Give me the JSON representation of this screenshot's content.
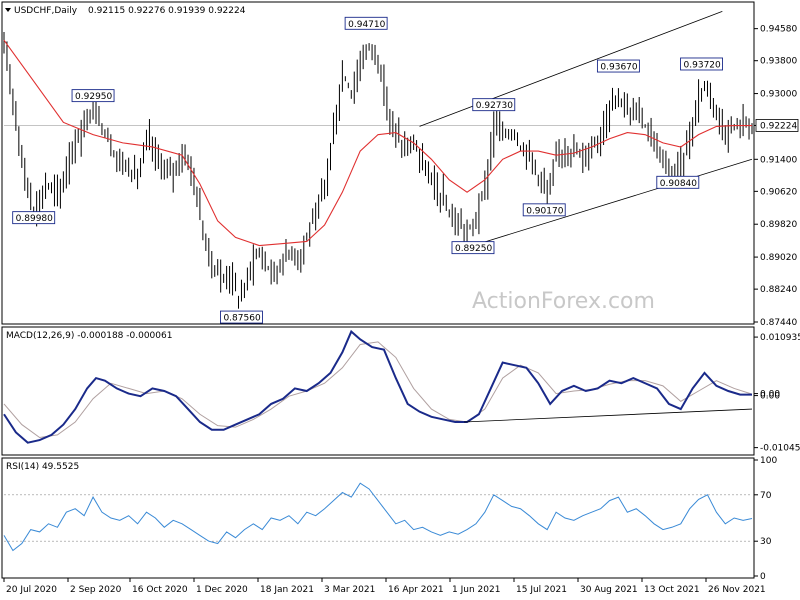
{
  "header": {
    "symbol": "USDCHF,Daily",
    "ohlc": "0.92115 0.92276 0.91939 0.92224"
  },
  "watermark": "ActionForex.com",
  "colors": {
    "candle": "#000000",
    "ma": "#e03030",
    "macd": "#1a2a8a",
    "signal": "#b0a0a0",
    "rsi": "#3a8ad6",
    "trend": "#000000",
    "label_border": "#1a2a8a"
  },
  "chart_data": [
    {
      "type": "candlestick",
      "title": "USDCHF,Daily",
      "yticks": [
        "0.94580",
        "0.93800",
        "0.93000",
        "0.92224",
        "0.91400",
        "0.90620",
        "0.89820",
        "0.89020",
        "0.88240",
        "0.87440"
      ],
      "ylim": [
        0.8744,
        0.9518
      ],
      "current_price": "0.92224",
      "x_tick_labels": [
        "20 Jul 2020",
        "2 Sep 2020",
        "16 Oct 2020",
        "1 Dec 2020",
        "18 Jan 2021",
        "3 Mar 2021",
        "16 Apr 2021",
        "1 Jun 2021",
        "15 Jul 2021",
        "30 Aug 2021",
        "13 Oct 2021",
        "26 Nov 2021"
      ],
      "annotations": [
        {
          "text": "0.92950",
          "price": 0.9295,
          "bar": 30
        },
        {
          "text": "0.89980",
          "price": 0.8998,
          "bar": 10
        },
        {
          "text": "0.87560",
          "price": 0.8756,
          "bar": 80
        },
        {
          "text": "0.94710",
          "price": 0.9471,
          "bar": 122
        },
        {
          "text": "0.89250",
          "price": 0.8925,
          "bar": 158
        },
        {
          "text": "0.92730",
          "price": 0.9273,
          "bar": 165
        },
        {
          "text": "0.90170",
          "price": 0.9017,
          "bar": 182
        },
        {
          "text": "0.93670",
          "price": 0.9367,
          "bar": 207
        },
        {
          "text": "0.93720",
          "price": 0.9372,
          "bar": 235
        },
        {
          "text": "0.90840",
          "price": 0.9084,
          "bar": 227
        }
      ],
      "price_path": [
        [
          0,
          0.94
        ],
        [
          3,
          0.928
        ],
        [
          6,
          0.912
        ],
        [
          10,
          0.901
        ],
        [
          14,
          0.908
        ],
        [
          18,
          0.905
        ],
        [
          22,
          0.915
        ],
        [
          26,
          0.921
        ],
        [
          30,
          0.927
        ],
        [
          33,
          0.922
        ],
        [
          37,
          0.915
        ],
        [
          41,
          0.912
        ],
        [
          45,
          0.91
        ],
        [
          48,
          0.919
        ],
        [
          52,
          0.913
        ],
        [
          56,
          0.91
        ],
        [
          59,
          0.915
        ],
        [
          62,
          0.913
        ],
        [
          64,
          0.908
        ],
        [
          67,
          0.895
        ],
        [
          70,
          0.888
        ],
        [
          73,
          0.885
        ],
        [
          76,
          0.886
        ],
        [
          79,
          0.88
        ],
        [
          81,
          0.883
        ],
        [
          84,
          0.891
        ],
        [
          87,
          0.89
        ],
        [
          90,
          0.886
        ],
        [
          93,
          0.889
        ],
        [
          96,
          0.892
        ],
        [
          99,
          0.89
        ],
        [
          102,
          0.896
        ],
        [
          105,
          0.9
        ],
        [
          108,
          0.909
        ],
        [
          111,
          0.922
        ],
        [
          114,
          0.935
        ],
        [
          117,
          0.93
        ],
        [
          120,
          0.938
        ],
        [
          123,
          0.942
        ],
        [
          126,
          0.938
        ],
        [
          129,
          0.925
        ],
        [
          132,
          0.92
        ],
        [
          135,
          0.916
        ],
        [
          138,
          0.918
        ],
        [
          141,
          0.912
        ],
        [
          144,
          0.908
        ],
        [
          147,
          0.905
        ],
        [
          150,
          0.9
        ],
        [
          153,
          0.898
        ],
        [
          156,
          0.896
        ],
        [
          159,
          0.9
        ],
        [
          162,
          0.908
        ],
        [
          165,
          0.923
        ],
        [
          168,
          0.92
        ],
        [
          171,
          0.921
        ],
        [
          174,
          0.917
        ],
        [
          177,
          0.915
        ],
        [
          180,
          0.91
        ],
        [
          183,
          0.905
        ],
        [
          186,
          0.915
        ],
        [
          189,
          0.917
        ],
        [
          192,
          0.916
        ],
        [
          195,
          0.914
        ],
        [
          198,
          0.918
        ],
        [
          201,
          0.92
        ],
        [
          204,
          0.928
        ],
        [
          207,
          0.93
        ],
        [
          210,
          0.925
        ],
        [
          213,
          0.926
        ],
        [
          216,
          0.922
        ],
        [
          219,
          0.918
        ],
        [
          222,
          0.912
        ],
        [
          225,
          0.911
        ],
        [
          228,
          0.913
        ],
        [
          231,
          0.92
        ],
        [
          234,
          0.93
        ],
        [
          237,
          0.932
        ],
        [
          240,
          0.925
        ],
        [
          243,
          0.92
        ],
        [
          246,
          0.922
        ],
        [
          249,
          0.923
        ],
        [
          252,
          0.9222
        ]
      ],
      "ma_path": [
        [
          0,
          0.943
        ],
        [
          10,
          0.933
        ],
        [
          20,
          0.923
        ],
        [
          30,
          0.92
        ],
        [
          40,
          0.918
        ],
        [
          50,
          0.917
        ],
        [
          60,
          0.915
        ],
        [
          66,
          0.908
        ],
        [
          72,
          0.899
        ],
        [
          78,
          0.895
        ],
        [
          86,
          0.893
        ],
        [
          94,
          0.8935
        ],
        [
          102,
          0.894
        ],
        [
          108,
          0.898
        ],
        [
          114,
          0.906
        ],
        [
          120,
          0.916
        ],
        [
          126,
          0.92
        ],
        [
          132,
          0.9205
        ],
        [
          138,
          0.918
        ],
        [
          144,
          0.914
        ],
        [
          150,
          0.909
        ],
        [
          156,
          0.906
        ],
        [
          162,
          0.909
        ],
        [
          168,
          0.914
        ],
        [
          174,
          0.916
        ],
        [
          180,
          0.916
        ],
        [
          186,
          0.915
        ],
        [
          192,
          0.9155
        ],
        [
          198,
          0.917
        ],
        [
          204,
          0.919
        ],
        [
          210,
          0.9205
        ],
        [
          216,
          0.92
        ],
        [
          222,
          0.918
        ],
        [
          228,
          0.917
        ],
        [
          234,
          0.92
        ],
        [
          240,
          0.922
        ],
        [
          246,
          0.9222
        ],
        [
          252,
          0.9222
        ]
      ],
      "channel_upper": [
        [
          140,
          0.922
        ],
        [
          242,
          0.95
        ]
      ],
      "channel_lower": [
        [
          158,
          0.893
        ],
        [
          252,
          0.914
        ]
      ],
      "current_price_line": 0.92224
    },
    {
      "type": "line",
      "title": "MACD(12,26,9) -0.000188 -0.000061",
      "yticks": [
        "0.010935",
        "0.00",
        "0.00",
        "-0.010459"
      ],
      "ylim": [
        -0.0115,
        0.0125
      ],
      "macd_path": [
        [
          0,
          -0.004
        ],
        [
          4,
          -0.0075
        ],
        [
          8,
          -0.0095
        ],
        [
          12,
          -0.009
        ],
        [
          16,
          -0.008
        ],
        [
          20,
          -0.006
        ],
        [
          24,
          -0.003
        ],
        [
          28,
          0.001
        ],
        [
          31,
          0.003
        ],
        [
          34,
          0.0025
        ],
        [
          38,
          0.001
        ],
        [
          42,
          0.0
        ],
        [
          46,
          -0.0005
        ],
        [
          50,
          0.001
        ],
        [
          54,
          0.0005
        ],
        [
          58,
          -0.0005
        ],
        [
          62,
          -0.003
        ],
        [
          66,
          -0.0055
        ],
        [
          70,
          -0.007
        ],
        [
          74,
          -0.007
        ],
        [
          78,
          -0.006
        ],
        [
          82,
          -0.005
        ],
        [
          86,
          -0.004
        ],
        [
          90,
          -0.002
        ],
        [
          94,
          -0.001
        ],
        [
          98,
          0.001
        ],
        [
          102,
          0.0005
        ],
        [
          106,
          0.002
        ],
        [
          110,
          0.004
        ],
        [
          114,
          0.008
        ],
        [
          117,
          0.012
        ],
        [
          120,
          0.0105
        ],
        [
          124,
          0.009
        ],
        [
          128,
          0.0085
        ],
        [
          132,
          0.003
        ],
        [
          136,
          -0.002
        ],
        [
          140,
          -0.0035
        ],
        [
          144,
          -0.0045
        ],
        [
          148,
          -0.005
        ],
        [
          152,
          -0.0055
        ],
        [
          156,
          -0.0055
        ],
        [
          160,
          -0.004
        ],
        [
          164,
          0.001
        ],
        [
          168,
          0.006
        ],
        [
          172,
          0.0055
        ],
        [
          176,
          0.005
        ],
        [
          180,
          0.002
        ],
        [
          184,
          -0.002
        ],
        [
          188,
          0.0005
        ],
        [
          192,
          0.0015
        ],
        [
          196,
          0.0005
        ],
        [
          200,
          0.001
        ],
        [
          204,
          0.0025
        ],
        [
          208,
          0.002
        ],
        [
          212,
          0.003
        ],
        [
          216,
          0.002
        ],
        [
          220,
          0.001
        ],
        [
          224,
          -0.002
        ],
        [
          228,
          -0.003
        ],
        [
          232,
          0.001
        ],
        [
          236,
          0.004
        ],
        [
          240,
          0.0015
        ],
        [
          244,
          0.0005
        ],
        [
          248,
          -0.0002
        ],
        [
          252,
          -0.0002
        ]
      ],
      "signal_path": [
        [
          0,
          -0.002
        ],
        [
          6,
          -0.006
        ],
        [
          12,
          -0.0085
        ],
        [
          18,
          -0.008
        ],
        [
          24,
          -0.0055
        ],
        [
          30,
          -0.001
        ],
        [
          36,
          0.002
        ],
        [
          42,
          0.001
        ],
        [
          48,
          0.0
        ],
        [
          54,
          0.0005
        ],
        [
          60,
          -0.001
        ],
        [
          66,
          -0.004
        ],
        [
          72,
          -0.0062
        ],
        [
          78,
          -0.0065
        ],
        [
          84,
          -0.005
        ],
        [
          90,
          -0.003
        ],
        [
          96,
          -0.0005
        ],
        [
          102,
          0.0005
        ],
        [
          108,
          0.002
        ],
        [
          114,
          0.005
        ],
        [
          120,
          0.0095
        ],
        [
          126,
          0.01
        ],
        [
          132,
          0.007
        ],
        [
          138,
          0.001
        ],
        [
          144,
          -0.003
        ],
        [
          150,
          -0.005
        ],
        [
          156,
          -0.0055
        ],
        [
          162,
          -0.003
        ],
        [
          168,
          0.003
        ],
        [
          174,
          0.0055
        ],
        [
          180,
          0.004
        ],
        [
          186,
          0.0
        ],
        [
          192,
          0.0005
        ],
        [
          198,
          0.0008
        ],
        [
          204,
          0.0018
        ],
        [
          210,
          0.0025
        ],
        [
          216,
          0.0025
        ],
        [
          222,
          0.0015
        ],
        [
          228,
          -0.0015
        ],
        [
          234,
          0.0005
        ],
        [
          240,
          0.0025
        ],
        [
          246,
          0.001
        ],
        [
          252,
          -0.0001
        ]
      ],
      "trend_line": [
        [
          155,
          -0.0055
        ],
        [
          252,
          -0.003
        ]
      ]
    },
    {
      "type": "line",
      "title": "RSI(14) 49.5525",
      "yticks": [
        "100",
        "70",
        "30",
        "0"
      ],
      "ylim": [
        0,
        100
      ],
      "levels": [
        70,
        30
      ],
      "rsi_path": [
        [
          0,
          35
        ],
        [
          3,
          22
        ],
        [
          6,
          28
        ],
        [
          9,
          40
        ],
        [
          12,
          38
        ],
        [
          15,
          45
        ],
        [
          18,
          42
        ],
        [
          21,
          55
        ],
        [
          24,
          58
        ],
        [
          27,
          52
        ],
        [
          30,
          68
        ],
        [
          33,
          55
        ],
        [
          36,
          50
        ],
        [
          39,
          48
        ],
        [
          42,
          52
        ],
        [
          45,
          45
        ],
        [
          48,
          55
        ],
        [
          51,
          50
        ],
        [
          54,
          42
        ],
        [
          57,
          48
        ],
        [
          60,
          45
        ],
        [
          63,
          40
        ],
        [
          66,
          35
        ],
        [
          69,
          30
        ],
        [
          72,
          28
        ],
        [
          75,
          38
        ],
        [
          78,
          33
        ],
        [
          81,
          40
        ],
        [
          84,
          45
        ],
        [
          87,
          40
        ],
        [
          90,
          50
        ],
        [
          93,
          48
        ],
        [
          96,
          52
        ],
        [
          99,
          45
        ],
        [
          102,
          55
        ],
        [
          105,
          52
        ],
        [
          108,
          58
        ],
        [
          111,
          65
        ],
        [
          114,
          72
        ],
        [
          117,
          68
        ],
        [
          120,
          80
        ],
        [
          123,
          75
        ],
        [
          126,
          65
        ],
        [
          129,
          55
        ],
        [
          132,
          45
        ],
        [
          135,
          48
        ],
        [
          138,
          40
        ],
        [
          141,
          42
        ],
        [
          144,
          38
        ],
        [
          147,
          35
        ],
        [
          150,
          38
        ],
        [
          153,
          36
        ],
        [
          156,
          40
        ],
        [
          159,
          45
        ],
        [
          162,
          55
        ],
        [
          165,
          70
        ],
        [
          168,
          65
        ],
        [
          171,
          60
        ],
        [
          174,
          58
        ],
        [
          177,
          52
        ],
        [
          180,
          45
        ],
        [
          183,
          40
        ],
        [
          186,
          55
        ],
        [
          189,
          50
        ],
        [
          192,
          48
        ],
        [
          195,
          52
        ],
        [
          198,
          55
        ],
        [
          201,
          58
        ],
        [
          204,
          65
        ],
        [
          207,
          68
        ],
        [
          210,
          55
        ],
        [
          213,
          58
        ],
        [
          216,
          52
        ],
        [
          219,
          45
        ],
        [
          222,
          40
        ],
        [
          225,
          42
        ],
        [
          228,
          45
        ],
        [
          231,
          58
        ],
        [
          234,
          66
        ],
        [
          237,
          70
        ],
        [
          240,
          55
        ],
        [
          243,
          45
        ],
        [
          246,
          50
        ],
        [
          249,
          48
        ],
        [
          252,
          49.55
        ]
      ]
    }
  ]
}
